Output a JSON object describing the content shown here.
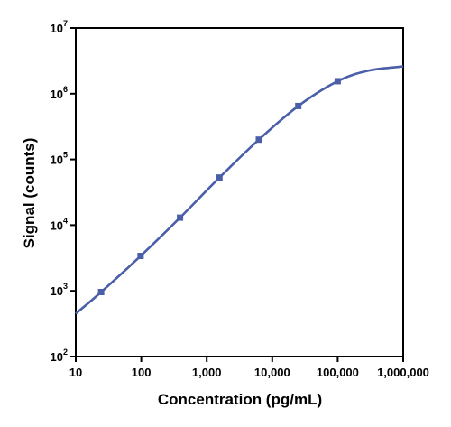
{
  "chart_data": {
    "type": "line",
    "title": "",
    "xlabel": "Concentration (pg/mL)",
    "ylabel": "Signal (counts)",
    "x_scale": "log",
    "y_scale": "log",
    "xlim": [
      10,
      1000000
    ],
    "ylim": [
      100,
      10000000
    ],
    "grid": false,
    "x_ticks": [
      {
        "value": 10,
        "label": "10"
      },
      {
        "value": 100,
        "label": "100"
      },
      {
        "value": 1000,
        "label": "1,000"
      },
      {
        "value": 10000,
        "label": "10,000"
      },
      {
        "value": 100000,
        "label": "100,000"
      },
      {
        "value": 1000000,
        "label": "1,000,000"
      }
    ],
    "y_ticks": [
      {
        "value": 100,
        "base": "10",
        "exp": "2"
      },
      {
        "value": 1000,
        "base": "10",
        "exp": "3"
      },
      {
        "value": 10000,
        "base": "10",
        "exp": "4"
      },
      {
        "value": 100000,
        "base": "10",
        "exp": "5"
      },
      {
        "value": 1000000,
        "base": "10",
        "exp": "6"
      },
      {
        "value": 10000000,
        "base": "10",
        "exp": "7"
      }
    ],
    "colors": {
      "series": "#4a5fa8",
      "axis": "#000000"
    },
    "series": [
      {
        "points": [
          {
            "x": 24.4,
            "y": 960
          },
          {
            "x": 97.7,
            "y": 3400
          },
          {
            "x": 391,
            "y": 13000
          },
          {
            "x": 1563,
            "y": 53000
          },
          {
            "x": 6250,
            "y": 200000
          },
          {
            "x": 25000,
            "y": 650000
          },
          {
            "x": 100000,
            "y": 1550000
          }
        ],
        "curve": [
          {
            "x": 10,
            "y": 450
          },
          {
            "x": 24.4,
            "y": 960
          },
          {
            "x": 97.7,
            "y": 3400
          },
          {
            "x": 391,
            "y": 13000
          },
          {
            "x": 1563,
            "y": 53000
          },
          {
            "x": 6250,
            "y": 200000
          },
          {
            "x": 25000,
            "y": 650000
          },
          {
            "x": 100000,
            "y": 1550000
          },
          {
            "x": 300000,
            "y": 2250000
          },
          {
            "x": 1000000,
            "y": 2600000
          }
        ]
      }
    ]
  }
}
